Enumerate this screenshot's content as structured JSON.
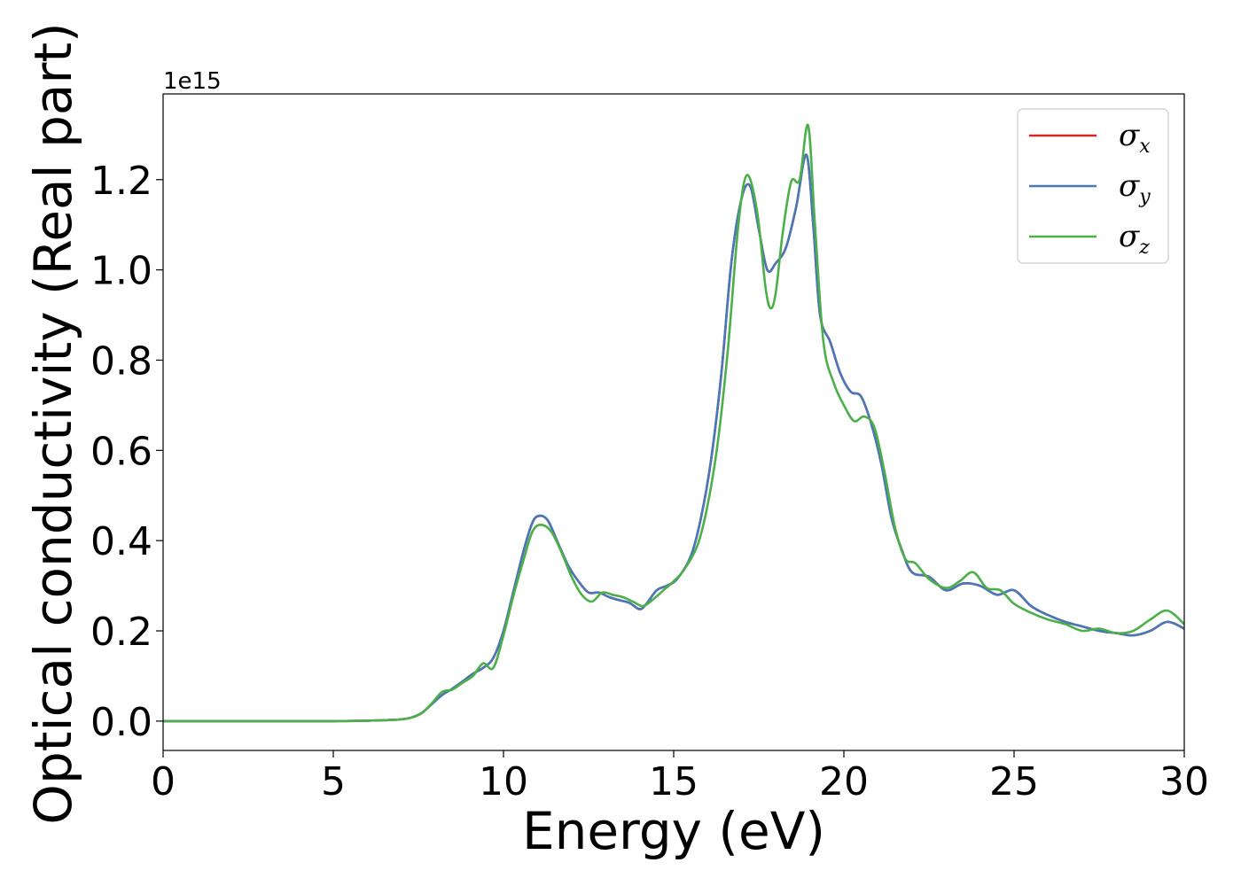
{
  "chart_data": {
    "type": "line",
    "xlabel": "Energy (eV)",
    "ylabel": "Optical conductivity (Real part)",
    "y_offset_label": "1e15",
    "xlim": [
      0,
      30
    ],
    "ylim": [
      -0.065,
      1.39
    ],
    "xticks": [
      0,
      5,
      10,
      15,
      20,
      25,
      30
    ],
    "yticks": [
      0.0,
      0.2,
      0.4,
      0.6,
      0.8,
      1.0,
      1.2
    ],
    "xtick_labels": [
      "0",
      "5",
      "10",
      "15",
      "20",
      "25",
      "30"
    ],
    "ytick_labels": [
      "0.0",
      "0.2",
      "0.4",
      "0.6",
      "0.8",
      "1.0",
      "1.2"
    ],
    "grid": false,
    "legend_position": "top-right",
    "series": [
      {
        "name": "σ",
        "subscript": "x",
        "color": "#d62728",
        "x": [
          0,
          1,
          2,
          3,
          4,
          5,
          6,
          6.5,
          7,
          7.3,
          7.6,
          7.9,
          8.2,
          8.5,
          8.8,
          9.1,
          9.4,
          9.7,
          10.0,
          10.3,
          10.6,
          10.85,
          11.05,
          11.3,
          11.6,
          11.9,
          12.2,
          12.5,
          12.8,
          13.1,
          13.4,
          13.7,
          14.0,
          14.2,
          14.5,
          14.8,
          15.1,
          15.5,
          15.8,
          16.1,
          16.4,
          16.7,
          17.0,
          17.25,
          17.5,
          17.75,
          18.0,
          18.3,
          18.6,
          18.9,
          19.1,
          19.3,
          19.6,
          19.9,
          20.2,
          20.5,
          20.8,
          21.1,
          21.4,
          21.7,
          22.0,
          22.5,
          23.0,
          23.5,
          24.0,
          24.5,
          25.0,
          25.5,
          26.0,
          26.5,
          27.0,
          27.5,
          28.0,
          28.5,
          29.0,
          29.5,
          30.0
        ],
        "values": [
          0,
          0,
          0,
          0,
          0,
          0,
          0.001,
          0.002,
          0.004,
          0.008,
          0.018,
          0.038,
          0.058,
          0.072,
          0.088,
          0.105,
          0.118,
          0.14,
          0.2,
          0.29,
          0.38,
          0.44,
          0.455,
          0.445,
          0.395,
          0.345,
          0.31,
          0.285,
          0.285,
          0.275,
          0.268,
          0.262,
          0.248,
          0.26,
          0.29,
          0.3,
          0.315,
          0.365,
          0.45,
          0.58,
          0.77,
          1.02,
          1.16,
          1.185,
          1.09,
          1.0,
          1.015,
          1.05,
          1.14,
          1.255,
          1.1,
          0.9,
          0.84,
          0.77,
          0.73,
          0.72,
          0.66,
          0.57,
          0.45,
          0.38,
          0.33,
          0.32,
          0.29,
          0.305,
          0.3,
          0.28,
          0.29,
          0.255,
          0.235,
          0.22,
          0.21,
          0.2,
          0.195,
          0.19,
          0.2,
          0.22,
          0.205
        ]
      },
      {
        "name": "σ",
        "subscript": "y",
        "color": "#4878b8",
        "x": [
          0,
          1,
          2,
          3,
          4,
          5,
          6,
          6.5,
          7,
          7.3,
          7.6,
          7.9,
          8.2,
          8.5,
          8.8,
          9.1,
          9.4,
          9.7,
          10.0,
          10.3,
          10.6,
          10.85,
          11.05,
          11.3,
          11.6,
          11.9,
          12.2,
          12.5,
          12.8,
          13.1,
          13.4,
          13.7,
          14.0,
          14.2,
          14.5,
          14.8,
          15.1,
          15.5,
          15.8,
          16.1,
          16.4,
          16.7,
          17.0,
          17.25,
          17.5,
          17.75,
          18.0,
          18.3,
          18.6,
          18.9,
          19.1,
          19.3,
          19.6,
          19.9,
          20.2,
          20.5,
          20.8,
          21.1,
          21.4,
          21.7,
          22.0,
          22.5,
          23.0,
          23.5,
          24.0,
          24.5,
          25.0,
          25.5,
          26.0,
          26.5,
          27.0,
          27.5,
          28.0,
          28.5,
          29.0,
          29.5,
          30.0
        ],
        "values": [
          0,
          0,
          0,
          0,
          0,
          0,
          0.001,
          0.002,
          0.004,
          0.008,
          0.018,
          0.038,
          0.058,
          0.072,
          0.088,
          0.105,
          0.118,
          0.14,
          0.2,
          0.29,
          0.38,
          0.44,
          0.455,
          0.445,
          0.395,
          0.345,
          0.31,
          0.285,
          0.285,
          0.275,
          0.268,
          0.262,
          0.248,
          0.26,
          0.29,
          0.3,
          0.315,
          0.365,
          0.45,
          0.58,
          0.77,
          1.02,
          1.16,
          1.185,
          1.09,
          1.0,
          1.015,
          1.05,
          1.14,
          1.255,
          1.1,
          0.9,
          0.84,
          0.77,
          0.73,
          0.72,
          0.66,
          0.57,
          0.45,
          0.38,
          0.33,
          0.32,
          0.29,
          0.305,
          0.3,
          0.28,
          0.29,
          0.255,
          0.235,
          0.22,
          0.21,
          0.2,
          0.195,
          0.19,
          0.2,
          0.22,
          0.205
        ]
      },
      {
        "name": "σ",
        "subscript": "z",
        "color": "#4daf4a",
        "x": [
          0,
          1,
          2,
          3,
          4,
          5,
          6,
          6.5,
          7,
          7.3,
          7.6,
          7.9,
          8.2,
          8.5,
          8.8,
          9.1,
          9.4,
          9.7,
          10.0,
          10.3,
          10.6,
          10.85,
          11.1,
          11.4,
          11.7,
          12.0,
          12.3,
          12.6,
          12.9,
          13.2,
          13.5,
          13.8,
          14.1,
          14.4,
          14.7,
          15.0,
          15.3,
          15.7,
          16.0,
          16.3,
          16.6,
          16.9,
          17.15,
          17.45,
          17.7,
          17.85,
          18.0,
          18.2,
          18.45,
          18.7,
          18.95,
          19.15,
          19.4,
          19.7,
          20.0,
          20.3,
          20.6,
          20.9,
          21.2,
          21.5,
          21.8,
          22.1,
          22.5,
          23.0,
          23.4,
          23.8,
          24.2,
          24.6,
          25.0,
          25.5,
          26.0,
          26.5,
          27.0,
          27.5,
          28.0,
          28.5,
          29.0,
          29.5,
          30.0
        ],
        "values": [
          0,
          0,
          0,
          0,
          0,
          0,
          0.001,
          0.002,
          0.004,
          0.008,
          0.018,
          0.04,
          0.065,
          0.07,
          0.085,
          0.1,
          0.128,
          0.118,
          0.19,
          0.28,
          0.36,
          0.42,
          0.435,
          0.42,
          0.375,
          0.32,
          0.28,
          0.265,
          0.285,
          0.28,
          0.275,
          0.265,
          0.255,
          0.27,
          0.29,
          0.31,
          0.335,
          0.39,
          0.48,
          0.62,
          0.83,
          1.1,
          1.21,
          1.13,
          0.96,
          0.915,
          0.95,
          1.08,
          1.195,
          1.2,
          1.32,
          1.1,
          0.84,
          0.75,
          0.7,
          0.665,
          0.675,
          0.65,
          0.55,
          0.43,
          0.36,
          0.35,
          0.315,
          0.295,
          0.31,
          0.33,
          0.295,
          0.29,
          0.26,
          0.24,
          0.225,
          0.215,
          0.2,
          0.205,
          0.195,
          0.2,
          0.225,
          0.245,
          0.215
        ]
      }
    ]
  }
}
